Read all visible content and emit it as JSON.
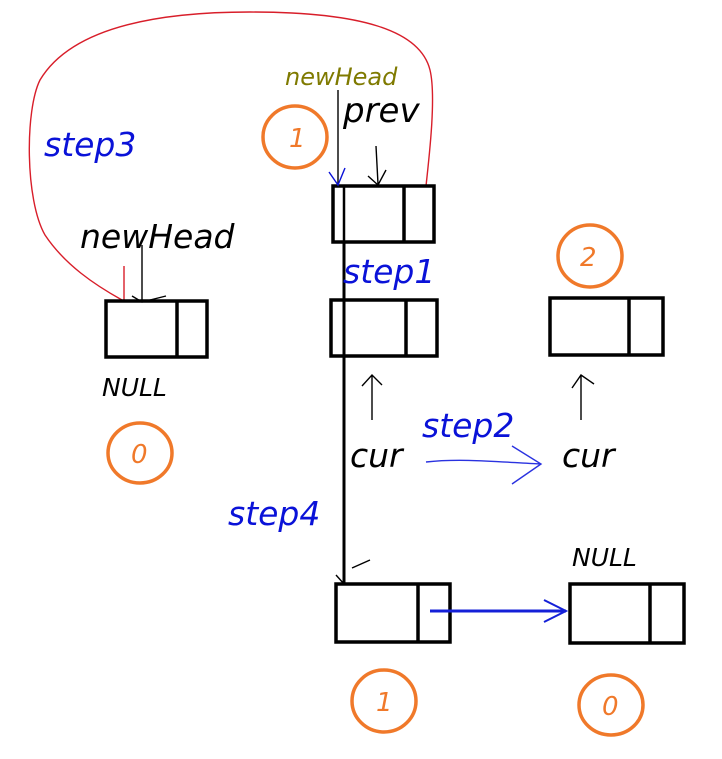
{
  "labels": {
    "step1": "step1",
    "step2": "step2",
    "step3": "step3",
    "step4": "step4",
    "newHead_top": "newHead",
    "newHead_left": "newHead",
    "prev": "prev",
    "cur_left": "cur",
    "cur_right": "cur",
    "null_left": "NULL",
    "null_bottom": "NULL"
  },
  "badges": {
    "top_middle": "1",
    "top_right": "2",
    "bottom_left": "0",
    "bottom_middle": "1",
    "bottom_right": "0"
  },
  "colors": {
    "node": "#000000",
    "step": "#0a12d8",
    "badge": "#f0792a",
    "newHead_top": "#7f7a00",
    "step3_line": "#d81e2a",
    "step2_arrow": "#2a32e0",
    "link_arrow": "#1420d8"
  }
}
